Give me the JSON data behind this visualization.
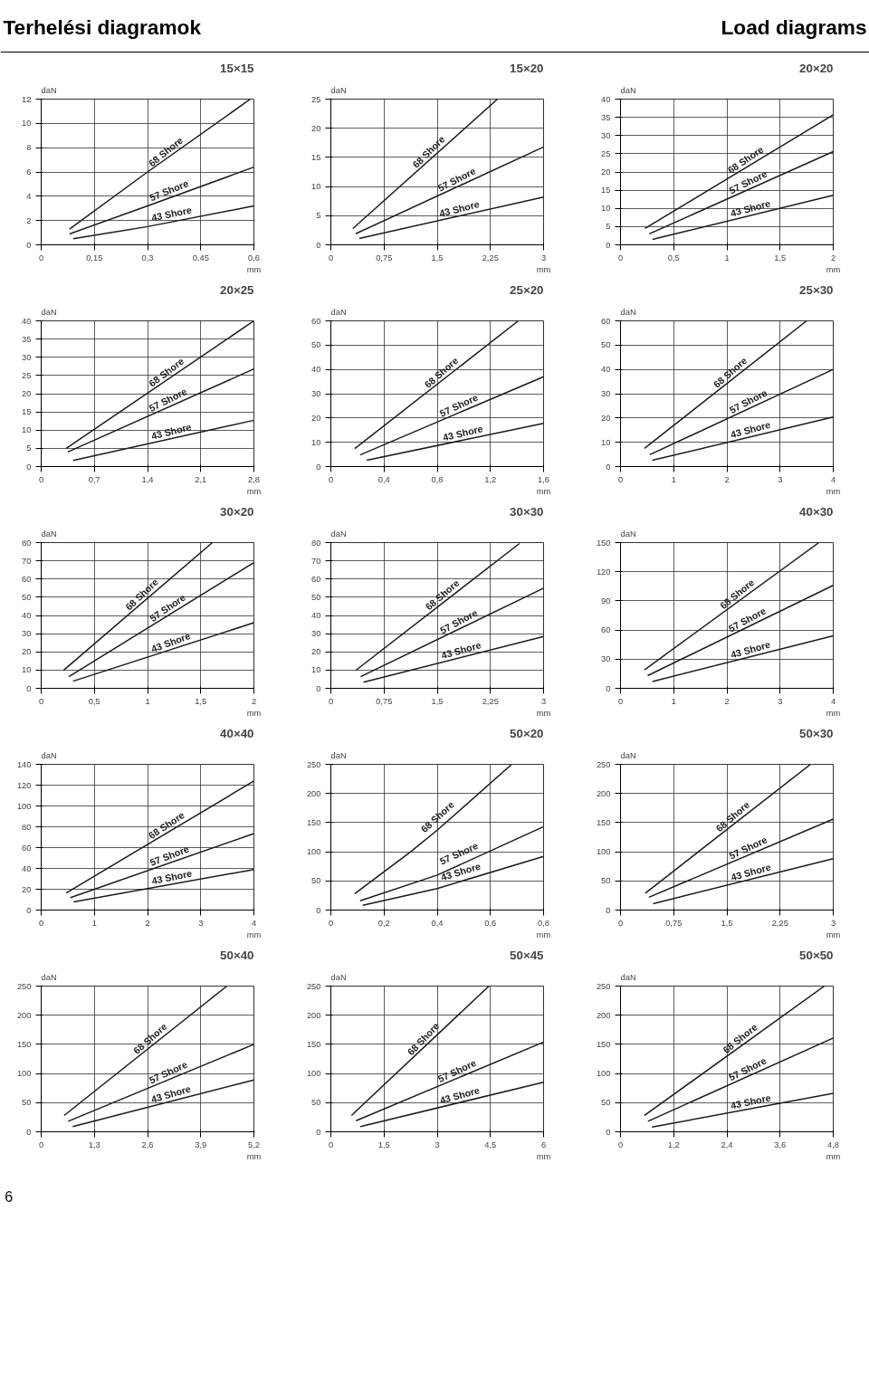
{
  "chart_data": [
    {
      "type": "other",
      "annotations": [
        "Terhelési diagramok",
        "Load diagrams"
      ]
    },
    {
      "type": "line",
      "title": "15×15",
      "xlabel": "mm",
      "ylabel": "daN",
      "grid": true,
      "legend": false,
      "xlim": [
        0,
        0.6
      ],
      "xticks": [
        0,
        {
          "value": 0.15,
          "label": "0,15"
        },
        {
          "value": 0.3,
          "label": "0,3"
        },
        {
          "value": 0.45,
          "label": "0,45"
        },
        {
          "value": 0.6,
          "label": "0,6"
        }
      ],
      "ylim": [
        0,
        12
      ],
      "yticks": [
        0,
        2,
        4,
        6,
        8,
        10,
        12
      ],
      "series": [
        {
          "name": "68 Shore",
          "color": "#1a1a1a",
          "x": [
            0.08,
            0.3,
            0.59
          ],
          "values": [
            1.3,
            6,
            12
          ]
        },
        {
          "name": "57 Shore",
          "color": "#1a1a1a",
          "x": [
            0.08,
            0.3,
            0.6
          ],
          "values": [
            0.9,
            3.2,
            6.4
          ]
        },
        {
          "name": "43 Shore",
          "color": "#1a1a1a",
          "x": [
            0.09,
            0.3,
            0.6
          ],
          "values": [
            0.5,
            1.5,
            3.2
          ]
        }
      ]
    },
    {
      "type": "line",
      "title": "15×20",
      "xlabel": "mm",
      "ylabel": "daN",
      "grid": true,
      "legend": false,
      "xlim": [
        0,
        3
      ],
      "xticks": [
        0,
        {
          "value": 0.75,
          "label": "0,75"
        },
        {
          "value": 1.5,
          "label": "1,5"
        },
        {
          "value": 2.25,
          "label": "2,25"
        },
        3
      ],
      "ylim": [
        0,
        25
      ],
      "yticks": [
        0,
        5,
        10,
        15,
        20,
        25
      ],
      "series": [
        {
          "name": "68 Shore",
          "color": "#1a1a1a",
          "x": [
            0.31,
            2.35
          ],
          "values": [
            2.8,
            25
          ]
        },
        {
          "name": "57 Shore",
          "color": "#1a1a1a",
          "x": [
            0.35,
            3
          ],
          "values": [
            1.9,
            16.8
          ]
        },
        {
          "name": "43 Shore",
          "color": "#1a1a1a",
          "x": [
            0.4,
            3
          ],
          "values": [
            1.1,
            8.2
          ]
        }
      ]
    },
    {
      "type": "line",
      "title": "20×20",
      "xlabel": "mm",
      "ylabel": "daN",
      "grid": true,
      "legend": false,
      "xlim": [
        0,
        2
      ],
      "xticks": [
        0,
        {
          "value": 0.5,
          "label": "0,5"
        },
        1,
        {
          "value": 1.5,
          "label": "1,5"
        },
        2
      ],
      "ylim": [
        0,
        40
      ],
      "yticks": [
        0,
        5,
        10,
        15,
        20,
        25,
        30,
        35,
        40
      ],
      "series": [
        {
          "name": "68 Shore",
          "color": "#1a1a1a",
          "x": [
            0.23,
            2
          ],
          "values": [
            4.5,
            35.7
          ]
        },
        {
          "name": "57 Shore",
          "color": "#1a1a1a",
          "x": [
            0.27,
            2
          ],
          "values": [
            3,
            25.6
          ]
        },
        {
          "name": "43 Shore",
          "color": "#1a1a1a",
          "x": [
            0.3,
            2
          ],
          "values": [
            1.5,
            13.6
          ]
        }
      ]
    },
    {
      "type": "line",
      "title": "20×25",
      "xlabel": "mm",
      "ylabel": "daN",
      "grid": true,
      "legend": false,
      "xlim": [
        0,
        2.8
      ],
      "xticks": [
        0,
        {
          "value": 0.7,
          "label": "0,7"
        },
        {
          "value": 1.4,
          "label": "1,4"
        },
        {
          "value": 2.1,
          "label": "2,1"
        },
        {
          "value": 2.8,
          "label": "2,8"
        }
      ],
      "ylim": [
        0,
        40
      ],
      "yticks": [
        0,
        5,
        10,
        15,
        20,
        25,
        30,
        35,
        40
      ],
      "series": [
        {
          "name": "68 Shore",
          "color": "#1a1a1a",
          "x": [
            0.33,
            2.8
          ],
          "values": [
            5,
            40
          ]
        },
        {
          "name": "57 Shore",
          "color": "#1a1a1a",
          "x": [
            0.35,
            2.8
          ],
          "values": [
            4,
            26.8
          ]
        },
        {
          "name": "43 Shore",
          "color": "#1a1a1a",
          "x": [
            0.42,
            2.8
          ],
          "values": [
            1.7,
            12.7
          ]
        }
      ]
    },
    {
      "type": "line",
      "title": "25×20",
      "xlabel": "mm",
      "ylabel": "daN",
      "grid": true,
      "legend": false,
      "xlim": [
        0,
        1.6
      ],
      "xticks": [
        0,
        {
          "value": 0.4,
          "label": "0,4"
        },
        {
          "value": 0.8,
          "label": "0,8"
        },
        {
          "value": 1.2,
          "label": "1,2"
        },
        {
          "value": 1.6,
          "label": "1,6"
        }
      ],
      "ylim": [
        0,
        60
      ],
      "yticks": [
        0,
        10,
        20,
        30,
        40,
        50,
        60
      ],
      "series": [
        {
          "name": "68 Shore",
          "color": "#1a1a1a",
          "x": [
            0.18,
            1.41
          ],
          "values": [
            7.4,
            60
          ]
        },
        {
          "name": "57 Shore",
          "color": "#1a1a1a",
          "x": [
            0.22,
            1.6
          ],
          "values": [
            4.8,
            37
          ]
        },
        {
          "name": "43 Shore",
          "color": "#1a1a1a",
          "x": [
            0.27,
            1.6
          ],
          "values": [
            2.6,
            17.8
          ]
        }
      ]
    },
    {
      "type": "line",
      "title": "25×30",
      "xlabel": "mm",
      "ylabel": "daN",
      "grid": true,
      "legend": false,
      "xlim": [
        0,
        4
      ],
      "xticks": [
        0,
        1,
        2,
        3,
        4
      ],
      "ylim": [
        0,
        60
      ],
      "yticks": [
        0,
        10,
        20,
        30,
        40,
        50,
        60
      ],
      "series": [
        {
          "name": "68 Shore",
          "color": "#1a1a1a",
          "x": [
            0.45,
            3.5
          ],
          "values": [
            7.5,
            60
          ]
        },
        {
          "name": "57 Shore",
          "color": "#1a1a1a",
          "x": [
            0.55,
            4
          ],
          "values": [
            4.9,
            40
          ]
        },
        {
          "name": "43 Shore",
          "color": "#1a1a1a",
          "x": [
            0.6,
            4
          ],
          "values": [
            2.6,
            20.4
          ]
        }
      ]
    },
    {
      "type": "line",
      "title": "30×20",
      "xlabel": "mm",
      "ylabel": "daN",
      "grid": true,
      "legend": false,
      "xlim": [
        0,
        2
      ],
      "xticks": [
        0,
        {
          "value": 0.5,
          "label": "0,5"
        },
        1,
        {
          "value": 1.5,
          "label": "1,5"
        },
        2
      ],
      "ylim": [
        0,
        80
      ],
      "yticks": [
        0,
        10,
        20,
        30,
        40,
        50,
        60,
        70,
        80
      ],
      "series": [
        {
          "name": "68 Shore",
          "color": "#1a1a1a",
          "x": [
            0.21,
            1.61
          ],
          "values": [
            9.9,
            80
          ]
        },
        {
          "name": "57 Shore",
          "color": "#1a1a1a",
          "x": [
            0.26,
            2
          ],
          "values": [
            6.4,
            69
          ]
        },
        {
          "name": "43 Shore",
          "color": "#1a1a1a",
          "x": [
            0.3,
            2
          ],
          "values": [
            3.9,
            36
          ]
        }
      ]
    },
    {
      "type": "line",
      "title": "30×30",
      "xlabel": "mm",
      "ylabel": "daN",
      "grid": true,
      "legend": false,
      "xlim": [
        0,
        3
      ],
      "xticks": [
        0,
        {
          "value": 0.75,
          "label": "0,75"
        },
        {
          "value": 1.5,
          "label": "1,5"
        },
        {
          "value": 2.25,
          "label": "2,25"
        },
        3
      ],
      "ylim": [
        0,
        80
      ],
      "yticks": [
        0,
        10,
        20,
        30,
        40,
        50,
        60,
        70,
        80
      ],
      "series": [
        {
          "name": "68 Shore",
          "color": "#1a1a1a",
          "x": [
            0.35,
            2.66
          ],
          "values": [
            9.8,
            79.5
          ]
        },
        {
          "name": "57 Shore",
          "color": "#1a1a1a",
          "x": [
            0.42,
            3
          ],
          "values": [
            6.4,
            55
          ]
        },
        {
          "name": "43 Shore",
          "color": "#1a1a1a",
          "x": [
            0.46,
            3
          ],
          "values": [
            3.4,
            28.4
          ]
        }
      ]
    },
    {
      "type": "line",
      "title": "40×30",
      "xlabel": "mm",
      "ylabel": "daN",
      "grid": true,
      "legend": false,
      "xlim": [
        0,
        4
      ],
      "xticks": [
        0,
        1,
        2,
        3,
        4
      ],
      "ylim": [
        0,
        150
      ],
      "yticks": [
        0,
        30,
        60,
        90,
        120,
        150
      ],
      "series": [
        {
          "name": "68 Shore",
          "color": "#1a1a1a",
          "x": [
            0.45,
            3.73
          ],
          "values": [
            19,
            150
          ]
        },
        {
          "name": "57 Shore",
          "color": "#1a1a1a",
          "x": [
            0.51,
            4
          ],
          "values": [
            13,
            106
          ]
        },
        {
          "name": "43 Shore",
          "color": "#1a1a1a",
          "x": [
            0.6,
            4
          ],
          "values": [
            7,
            54
          ]
        }
      ]
    },
    {
      "type": "line",
      "title": "40×40",
      "xlabel": "mm",
      "ylabel": "daN",
      "grid": true,
      "legend": false,
      "xlim": [
        0,
        4
      ],
      "xticks": [
        0,
        1,
        2,
        3,
        4
      ],
      "ylim": [
        0,
        140
      ],
      "yticks": [
        0,
        20,
        40,
        60,
        80,
        100,
        120,
        140
      ],
      "series": [
        {
          "name": "68 Shore",
          "color": "#1a1a1a",
          "x": [
            0.47,
            4
          ],
          "values": [
            16.4,
            124
          ]
        },
        {
          "name": "57 Shore",
          "color": "#1a1a1a",
          "x": [
            0.55,
            4
          ],
          "values": [
            12,
            73.5
          ]
        },
        {
          "name": "43 Shore",
          "color": "#1a1a1a",
          "x": [
            0.61,
            4
          ],
          "values": [
            7.8,
            39
          ]
        }
      ]
    },
    {
      "type": "line",
      "title": "50×20",
      "xlabel": "mm",
      "ylabel": "daN",
      "grid": true,
      "legend": false,
      "xlim": [
        0,
        0.8
      ],
      "xticks": [
        0,
        {
          "value": 0.2,
          "label": "0,2"
        },
        {
          "value": 0.4,
          "label": "0,4"
        },
        {
          "value": 0.6,
          "label": "0,6"
        },
        {
          "value": 0.8,
          "label": "0,8"
        }
      ],
      "ylim": [
        0,
        250
      ],
      "yticks": [
        0,
        50,
        100,
        150,
        200,
        250
      ],
      "series": [
        {
          "name": "68 Shore",
          "color": "#1a1a1a",
          "x": [
            0.09,
            0.3,
            0.4,
            0.68
          ],
          "values": [
            28,
            100,
            137,
            250
          ]
        },
        {
          "name": "57 Shore",
          "color": "#1a1a1a",
          "x": [
            0.11,
            0.4,
            0.8
          ],
          "values": [
            16,
            60,
            143
          ]
        },
        {
          "name": "43 Shore",
          "color": "#1a1a1a",
          "x": [
            0.12,
            0.4,
            0.8
          ],
          "values": [
            8,
            37,
            92
          ]
        }
      ]
    },
    {
      "type": "line",
      "title": "50×30",
      "xlabel": "mm",
      "ylabel": "daN",
      "grid": true,
      "legend": false,
      "xlim": [
        0,
        3
      ],
      "xticks": [
        0,
        {
          "value": 0.75,
          "label": "0,75"
        },
        {
          "value": 1.5,
          "label": "1,5"
        },
        {
          "value": 2.25,
          "label": "2,25"
        },
        3
      ],
      "ylim": [
        0,
        250
      ],
      "yticks": [
        0,
        50,
        100,
        150,
        200,
        250
      ],
      "series": [
        {
          "name": "68 Shore",
          "color": "#1a1a1a",
          "x": [
            0.35,
            2.68
          ],
          "values": [
            29,
            250
          ]
        },
        {
          "name": "57 Shore",
          "color": "#1a1a1a",
          "x": [
            0.4,
            3
          ],
          "values": [
            22,
            156
          ]
        },
        {
          "name": "43 Shore",
          "color": "#1a1a1a",
          "x": [
            0.46,
            3
          ],
          "values": [
            11,
            88
          ]
        }
      ]
    },
    {
      "type": "line",
      "title": "50×40",
      "xlabel": "mm",
      "ylabel": "daN",
      "grid": true,
      "legend": false,
      "xlim": [
        0,
        5.2
      ],
      "xticks": [
        0,
        {
          "value": 1.3,
          "label": "1,3"
        },
        {
          "value": 2.6,
          "label": "2,6"
        },
        {
          "value": 3.9,
          "label": "3,9"
        },
        {
          "value": 5.2,
          "label": "5,2"
        }
      ],
      "ylim": [
        0,
        250
      ],
      "yticks": [
        0,
        50,
        100,
        150,
        200,
        250
      ],
      "series": [
        {
          "name": "68 Shore",
          "color": "#1a1a1a",
          "x": [
            0.56,
            4.54
          ],
          "values": [
            28,
            250
          ]
        },
        {
          "name": "57 Shore",
          "color": "#1a1a1a",
          "x": [
            0.66,
            5.2
          ],
          "values": [
            18,
            150
          ]
        },
        {
          "name": "43 Shore",
          "color": "#1a1a1a",
          "x": [
            0.77,
            5.2
          ],
          "values": [
            9,
            89
          ]
        }
      ]
    },
    {
      "type": "line",
      "title": "50×45",
      "xlabel": "mm",
      "ylabel": "daN",
      "grid": true,
      "legend": false,
      "xlim": [
        0,
        6
      ],
      "xticks": [
        0,
        {
          "value": 1.5,
          "label": "1,5"
        },
        3,
        {
          "value": 4.5,
          "label": "4,5"
        },
        6
      ],
      "ylim": [
        0,
        250
      ],
      "yticks": [
        0,
        50,
        100,
        150,
        200,
        250
      ],
      "series": [
        {
          "name": "68 Shore",
          "color": "#1a1a1a",
          "x": [
            0.58,
            4.46
          ],
          "values": [
            28,
            250
          ]
        },
        {
          "name": "57 Shore",
          "color": "#1a1a1a",
          "x": [
            0.71,
            6
          ],
          "values": [
            19,
            154
          ]
        },
        {
          "name": "43 Shore",
          "color": "#1a1a1a",
          "x": [
            0.83,
            6
          ],
          "values": [
            9,
            85
          ]
        }
      ]
    },
    {
      "type": "line",
      "title": "50×50",
      "xlabel": "mm",
      "ylabel": "daN",
      "grid": true,
      "legend": false,
      "xlim": [
        0,
        4.8
      ],
      "xticks": [
        0,
        {
          "value": 1.2,
          "label": "1,2"
        },
        {
          "value": 2.4,
          "label": "2,4"
        },
        {
          "value": 3.6,
          "label": "3,6"
        },
        {
          "value": 4.8,
          "label": "4,8"
        }
      ],
      "ylim": [
        0,
        250
      ],
      "yticks": [
        0,
        50,
        100,
        150,
        200,
        250
      ],
      "series": [
        {
          "name": "68 Shore",
          "color": "#1a1a1a",
          "x": [
            0.54,
            4.6
          ],
          "values": [
            28,
            250
          ]
        },
        {
          "name": "57 Shore",
          "color": "#1a1a1a",
          "x": [
            0.62,
            4.8
          ],
          "values": [
            18,
            161
          ]
        },
        {
          "name": "43 Shore",
          "color": "#1a1a1a",
          "x": [
            0.71,
            4.8
          ],
          "values": [
            8,
            66
          ]
        }
      ]
    },
    {
      "type": "other",
      "annotations": [
        "6"
      ]
    }
  ]
}
